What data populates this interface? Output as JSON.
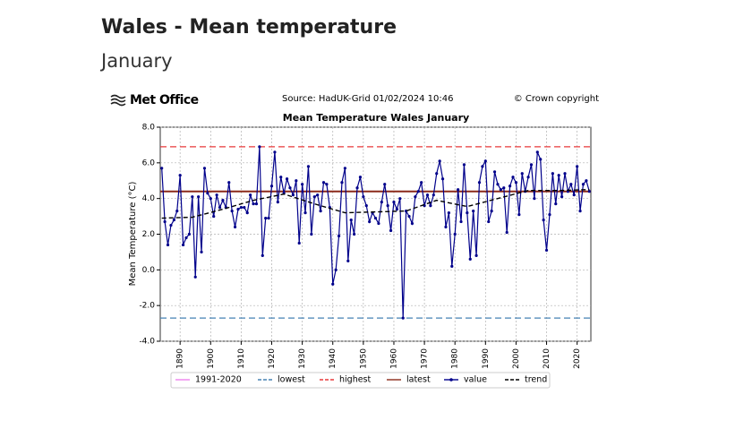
{
  "page": {
    "heading": "Wales - Mean temperature",
    "subheading": "January",
    "logo": "Met Office",
    "source": "Source: HadUK-Grid 01/02/2024 10:46",
    "copyright": "© Crown copyright"
  },
  "chart_data": {
    "type": "line",
    "title": "Mean Temperature Wales January",
    "y_label": "Mean Temperature (°C)",
    "xlim": [
      1883.5,
      2024.5
    ],
    "xticks": [
      1890,
      1900,
      1910,
      1920,
      1930,
      1940,
      1950,
      1960,
      1970,
      1980,
      1990,
      2000,
      2010,
      2020
    ],
    "ylim": [
      -4,
      8
    ],
    "yticks": [
      {
        "value": -4,
        "label": "-4.0"
      },
      {
        "value": -2,
        "label": "-2.0"
      },
      {
        "value": 0,
        "label": "0.0"
      },
      {
        "value": 2,
        "label": "2.0"
      },
      {
        "value": 4,
        "label": "4.0"
      },
      {
        "value": 6,
        "label": "6.0"
      },
      {
        "value": 8,
        "label": "8.0"
      }
    ],
    "grid": true,
    "x": [
      1884,
      1885,
      1886,
      1887,
      1888,
      1889,
      1890,
      1891,
      1892,
      1893,
      1894,
      1895,
      1896,
      1897,
      1898,
      1899,
      1900,
      1901,
      1902,
      1903,
      1904,
      1905,
      1906,
      1907,
      1908,
      1909,
      1910,
      1911,
      1912,
      1913,
      1914,
      1915,
      1916,
      1917,
      1918,
      1919,
      1920,
      1921,
      1922,
      1923,
      1924,
      1925,
      1926,
      1927,
      1928,
      1929,
      1930,
      1931,
      1932,
      1933,
      1934,
      1935,
      1936,
      1937,
      1938,
      1939,
      1940,
      1941,
      1942,
      1943,
      1944,
      1945,
      1946,
      1947,
      1948,
      1949,
      1950,
      1951,
      1952,
      1953,
      1954,
      1955,
      1956,
      1957,
      1958,
      1959,
      1960,
      1961,
      1962,
      1963,
      1964,
      1965,
      1966,
      1967,
      1968,
      1969,
      1970,
      1971,
      1972,
      1973,
      1974,
      1975,
      1976,
      1977,
      1978,
      1979,
      1980,
      1981,
      1982,
      1983,
      1984,
      1985,
      1986,
      1987,
      1988,
      1989,
      1990,
      1991,
      1992,
      1993,
      1994,
      1995,
      1996,
      1997,
      1998,
      1999,
      2000,
      2001,
      2002,
      2003,
      2004,
      2005,
      2006,
      2007,
      2008,
      2009,
      2010,
      2011,
      2012,
      2013,
      2014,
      2015,
      2016,
      2017,
      2018,
      2019,
      2020,
      2021,
      2022,
      2023,
      2024
    ],
    "series": [
      {
        "name": "1991-2020",
        "color": "#ee82ee",
        "kind": "reference",
        "value": 4.4
      },
      {
        "name": "lowest",
        "color": "#4682b4",
        "kind": "reference",
        "dashed": true,
        "value": -2.7
      },
      {
        "name": "highest",
        "color": "#e8393a",
        "kind": "reference",
        "dashed": true,
        "value": 6.9
      },
      {
        "name": "latest",
        "color": "#8b2a1a",
        "kind": "reference",
        "value": 4.4
      },
      {
        "name": "value",
        "color": "#00008b",
        "kind": "data",
        "markers": true,
        "values": [
          5.7,
          2.7,
          1.4,
          2.5,
          2.8,
          3.3,
          5.3,
          1.4,
          1.8,
          2.0,
          4.1,
          -0.4,
          4.1,
          1.0,
          5.7,
          4.3,
          4.0,
          3.0,
          4.2,
          3.5,
          3.9,
          3.5,
          4.9,
          3.3,
          2.4,
          3.4,
          3.5,
          3.5,
          3.2,
          4.2,
          3.7,
          3.7,
          6.9,
          0.8,
          2.9,
          2.9,
          4.7,
          6.6,
          3.8,
          5.2,
          4.3,
          5.1,
          4.6,
          4.2,
          5.0,
          1.5,
          4.8,
          3.2,
          5.8,
          2.0,
          4.1,
          4.2,
          3.3,
          4.9,
          4.8,
          3.5,
          -0.8,
          0.0,
          1.9,
          4.9,
          5.7,
          0.5,
          2.8,
          2.0,
          4.6,
          5.2,
          4.1,
          3.6,
          2.7,
          3.2,
          2.9,
          2.6,
          3.8,
          4.8,
          3.6,
          2.2,
          3.8,
          3.4,
          4.0,
          -2.7,
          3.3,
          3.0,
          2.6,
          4.1,
          4.4,
          4.9,
          3.6,
          4.2,
          3.6,
          4.2,
          5.4,
          6.1,
          5.1,
          2.4,
          3.2,
          0.2,
          2.0,
          4.5,
          2.7,
          5.9,
          3.2,
          0.6,
          3.3,
          0.8,
          4.9,
          5.8,
          6.1,
          2.7,
          3.3,
          5.5,
          4.8,
          4.5,
          4.6,
          2.1,
          4.7,
          5.2,
          4.9,
          3.1,
          5.4,
          4.4,
          5.2,
          5.9,
          4.0,
          6.6,
          6.2,
          2.8,
          1.1,
          3.1,
          5.4,
          3.7,
          5.3,
          4.1,
          5.4,
          4.4,
          4.8,
          4.2,
          5.8,
          3.3,
          4.8,
          5.0,
          4.4
        ]
      },
      {
        "name": "trend",
        "color": "#000000",
        "kind": "trend",
        "dashed": true,
        "x": [
          1884,
          1894,
          1904,
          1914,
          1924,
          1934,
          1944,
          1954,
          1964,
          1974,
          1984,
          1994,
          2004,
          2014,
          2024
        ],
        "values": [
          2.9,
          2.95,
          3.4,
          3.9,
          4.25,
          3.7,
          3.2,
          3.25,
          3.3,
          3.9,
          3.55,
          4.0,
          4.45,
          4.45,
          4.5
        ]
      }
    ]
  }
}
